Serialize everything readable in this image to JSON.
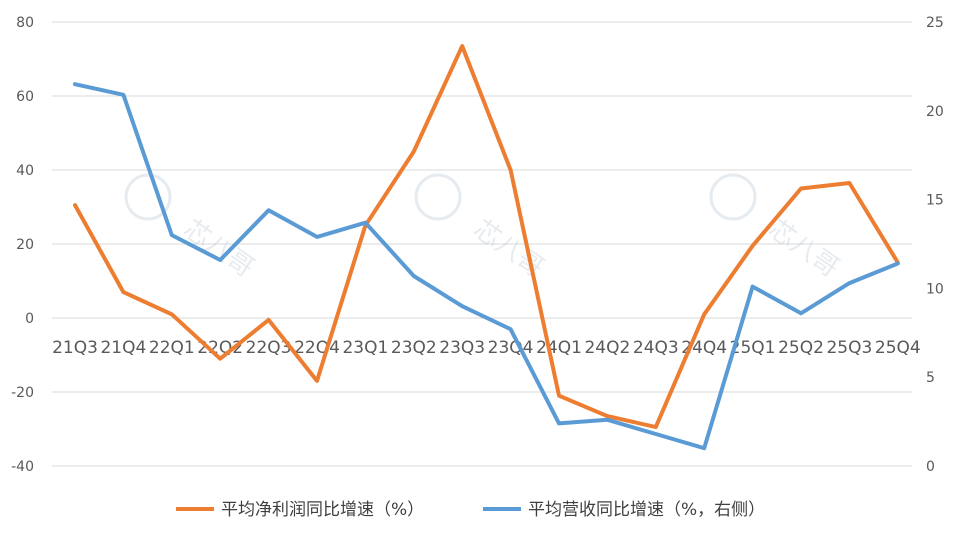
{
  "chart_data": {
    "type": "line",
    "title": "",
    "categories": [
      "21Q3",
      "21Q4",
      "22Q1",
      "22Q2",
      "22Q3",
      "22Q4",
      "23Q1",
      "23Q2",
      "23Q3",
      "23Q4",
      "24Q1",
      "24Q2",
      "24Q3",
      "24Q4",
      "25Q1",
      "25Q2",
      "25Q3",
      "25Q4"
    ],
    "series": [
      {
        "name": "平均净利润同比增速（%）",
        "axis": "left",
        "color": "#ED7D31",
        "values": [
          30.5,
          7,
          1,
          -11,
          -0.5,
          -17,
          25,
          45,
          73.5,
          40,
          -21,
          -26.5,
          -29.5,
          1,
          19.5,
          35,
          36.5,
          15
        ]
      },
      {
        "name": "平均营收同比增速（%，右侧）",
        "axis": "right",
        "color": "#5B9BD5",
        "values": [
          21.5,
          20.9,
          13.0,
          11.6,
          14.4,
          12.9,
          13.7,
          10.7,
          9.0,
          7.7,
          2.4,
          2.6,
          1.8,
          1.0,
          10.1,
          8.6,
          10.3,
          11.4
        ]
      }
    ],
    "yaxis_left": {
      "ylim": [
        -40,
        80
      ],
      "ticks": [
        "80",
        "60",
        "40",
        "20",
        "0",
        "-20",
        "-40"
      ]
    },
    "yaxis_right": {
      "ylim": [
        0,
        25
      ],
      "ticks": [
        "25",
        "20",
        "15",
        "10",
        "5",
        "0"
      ]
    },
    "grid": true,
    "legend_position": "bottom"
  },
  "watermark_text": "芯八哥"
}
